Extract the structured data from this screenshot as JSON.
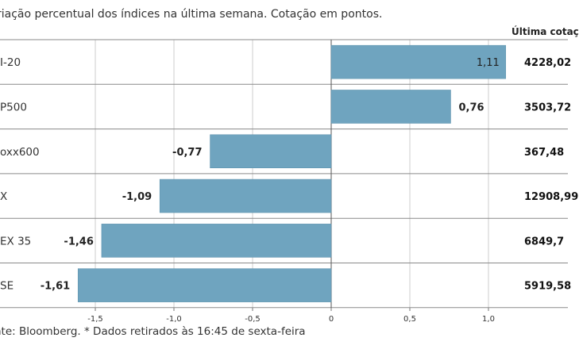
{
  "subtitle": "riação percentual dos índices na última semana. Cotação em pontos.",
  "column_header": "Última cotaç",
  "source": "nte: Bloomberg.  * Dados retirados às 16:45 de sexta-feira",
  "colors": {
    "bar": "#6fa4bf",
    "bar_edge": "#5a8fab",
    "grid": "#cccccc",
    "row_divider": "#8a8a8a"
  },
  "chart_data": {
    "type": "bar",
    "orientation": "horizontal",
    "categories": [
      "I-20",
      "P500",
      "oxx600",
      "X",
      "EX 35",
      "SE"
    ],
    "values": [
      1.11,
      0.76,
      -0.77,
      -1.09,
      -1.46,
      -1.61
    ],
    "value_labels": [
      "1,11",
      "0,76",
      "-0,77",
      "-1,09",
      "-1,46",
      "-1,61"
    ],
    "last_quote": [
      "4228,02",
      "3503,72",
      "367,48",
      "12908,99",
      "6849,7",
      "5919,58"
    ],
    "xlim": [
      -1.6,
      1.2
    ],
    "xticks": [
      -1.5,
      -1.0,
      -0.5,
      0,
      0.5,
      1.0
    ],
    "xtick_labels": [
      "-1,5",
      "-1,0",
      "-0,5",
      "0",
      "0,5",
      "1,0"
    ],
    "grid": true
  }
}
